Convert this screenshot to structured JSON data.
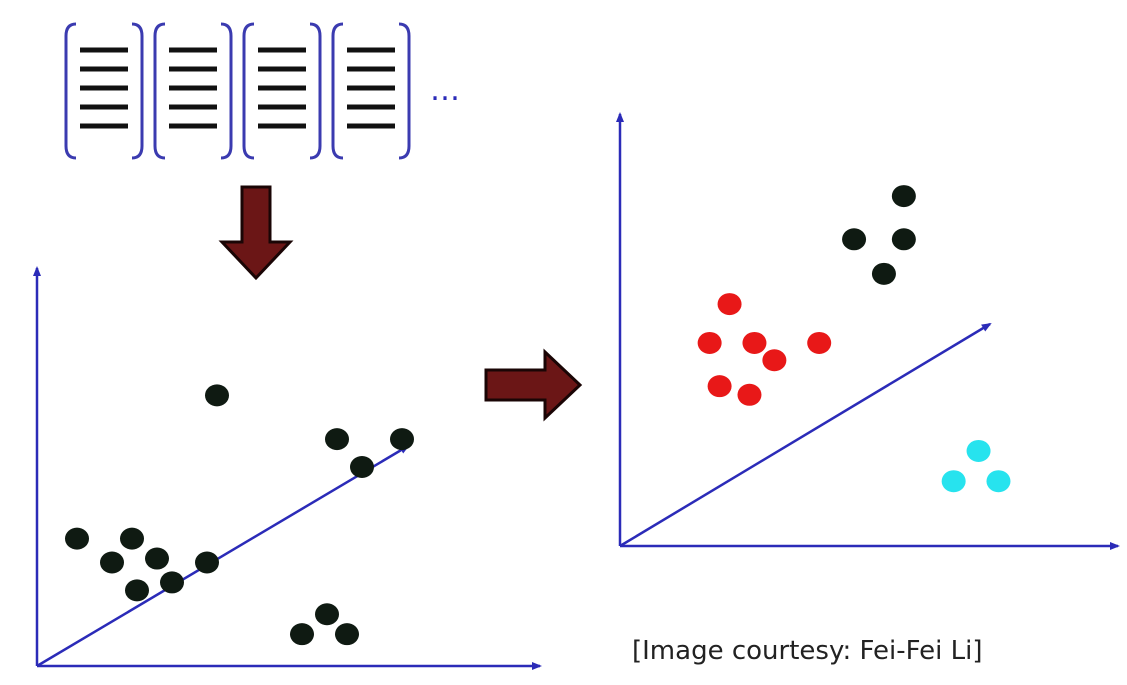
{
  "documents": {
    "count": 4,
    "lines_per_doc": 5,
    "ellipsis": "…"
  },
  "left_plot": {
    "points": [
      {
        "x": 0.36,
        "y": 0.68,
        "cluster": "a"
      },
      {
        "x": 0.6,
        "y": 0.57,
        "cluster": "a"
      },
      {
        "x": 0.73,
        "y": 0.57,
        "cluster": "a"
      },
      {
        "x": 0.65,
        "y": 0.5,
        "cluster": "a"
      },
      {
        "x": 0.08,
        "y": 0.32,
        "cluster": "b"
      },
      {
        "x": 0.19,
        "y": 0.32,
        "cluster": "b"
      },
      {
        "x": 0.24,
        "y": 0.27,
        "cluster": "b"
      },
      {
        "x": 0.15,
        "y": 0.26,
        "cluster": "b"
      },
      {
        "x": 0.34,
        "y": 0.26,
        "cluster": "b"
      },
      {
        "x": 0.27,
        "y": 0.21,
        "cluster": "b"
      },
      {
        "x": 0.2,
        "y": 0.19,
        "cluster": "b"
      },
      {
        "x": 0.58,
        "y": 0.13,
        "cluster": "c"
      },
      {
        "x": 0.53,
        "y": 0.08,
        "cluster": "c"
      },
      {
        "x": 0.62,
        "y": 0.08,
        "cluster": "c"
      }
    ]
  },
  "right_plot": {
    "points": [
      {
        "x": 0.57,
        "y": 0.81,
        "cluster": "a"
      },
      {
        "x": 0.47,
        "y": 0.71,
        "cluster": "a"
      },
      {
        "x": 0.57,
        "y": 0.71,
        "cluster": "a"
      },
      {
        "x": 0.53,
        "y": 0.63,
        "cluster": "a"
      },
      {
        "x": 0.22,
        "y": 0.56,
        "cluster": "b"
      },
      {
        "x": 0.18,
        "y": 0.47,
        "cluster": "b"
      },
      {
        "x": 0.27,
        "y": 0.47,
        "cluster": "b"
      },
      {
        "x": 0.4,
        "y": 0.47,
        "cluster": "b"
      },
      {
        "x": 0.31,
        "y": 0.43,
        "cluster": "b"
      },
      {
        "x": 0.2,
        "y": 0.37,
        "cluster": "b"
      },
      {
        "x": 0.26,
        "y": 0.35,
        "cluster": "b"
      },
      {
        "x": 0.72,
        "y": 0.22,
        "cluster": "c"
      },
      {
        "x": 0.67,
        "y": 0.15,
        "cluster": "c"
      },
      {
        "x": 0.76,
        "y": 0.15,
        "cluster": "c"
      }
    ]
  },
  "colors": {
    "axis": "#2b2bb8",
    "bracket": "#3b3bb0",
    "doc_line": "#111111",
    "point_default": "#0f1a12",
    "arrow_fill": "#6b1616",
    "arrow_stroke": "#1a0505",
    "cluster_a": "#0f1a12",
    "cluster_b": "#e81818",
    "cluster_c": "#27e3ee"
  },
  "caption": "[Image courtesy: Fei-Fei Li]"
}
